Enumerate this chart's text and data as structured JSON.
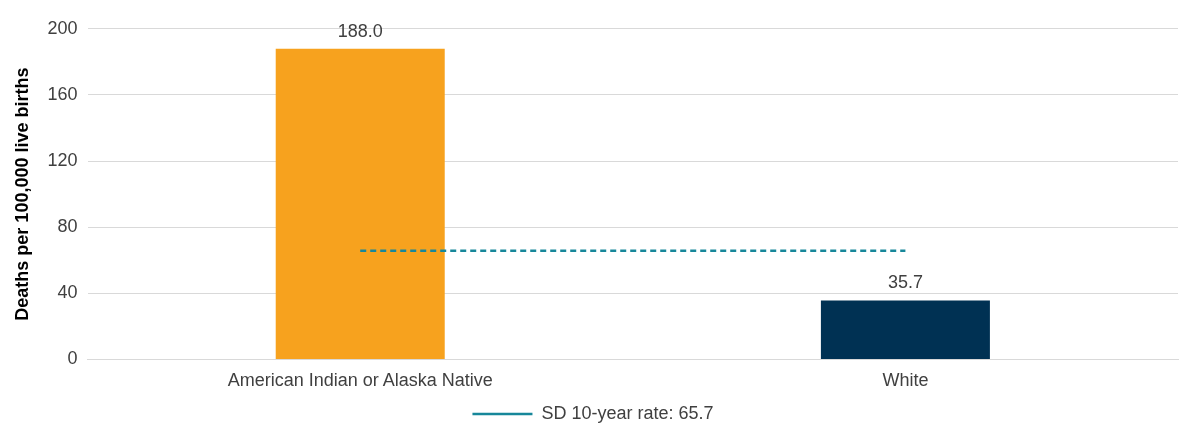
{
  "chart_data": {
    "type": "bar",
    "ylabel": "Deaths per 100,000 live births",
    "categories": [
      "American Indian or Alaska Native",
      "White"
    ],
    "series": [
      {
        "colors": [
          "#f7a21e",
          "#003153"
        ],
        "values": [
          188.0,
          35.7
        ],
        "value_labels": [
          "188.0",
          "35.7"
        ]
      },
      {
        "type": "line",
        "name": "SD 10-year rate: 65.7",
        "color": "#17879a",
        "values": [
          65.7,
          65.7
        ],
        "line_style": "dashed",
        "marker": "none"
      }
    ],
    "ylim": [
      0,
      200
    ],
    "yticks": [
      0,
      40,
      80,
      120,
      160,
      200
    ],
    "grid": "y",
    "legend": "bottom"
  }
}
